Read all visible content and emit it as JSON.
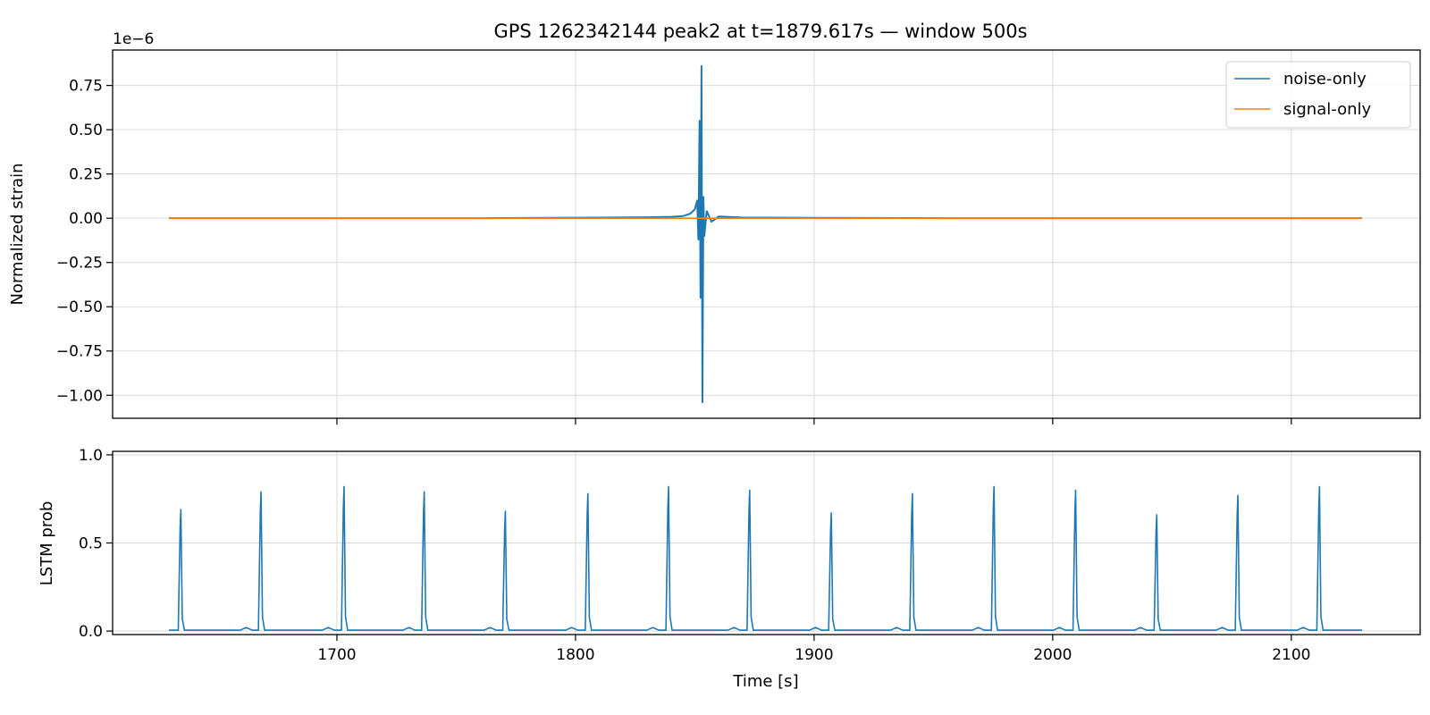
{
  "chart_data": {
    "title": "GPS 1262342144 peak2 at t=1879.617s — window 500s",
    "xlabel": "Time [s]",
    "panels": [
      {
        "type": "line",
        "ylabel": "Normalized strain",
        "offset_text": "1e−6",
        "scale": 1e-06,
        "xlim": [
          1606,
          2154
        ],
        "ylim": [
          -1.13,
          0.95
        ],
        "yticks": [
          0.75,
          0.5,
          0.25,
          0.0,
          -0.25,
          -0.5,
          -0.75,
          -1.0
        ],
        "ytick_labels": [
          "0.75",
          "0.50",
          "0.25",
          "0.00",
          "−0.25",
          "−0.50",
          "−0.75",
          "−1.00"
        ],
        "grid": true,
        "legend": "top-right",
        "series": [
          {
            "name": "noise-only",
            "color": "#1f77b4",
            "x": [
              1629.6,
              1700,
              1760,
              1800,
              1830,
              1840,
              1845,
              1848,
              1850,
              1851,
              1851.5,
              1852,
              1852.4,
              1852.8,
              1853.2,
              1853.6,
              1854,
              1855,
              1857,
              1860,
              1870,
              1900,
              1960,
              2040,
              2129.6
            ],
            "y": [
              0,
              0,
              0,
              0.003,
              0.005,
              0.008,
              0.012,
              0.025,
              0.05,
              0.1,
              -0.12,
              0.55,
              -0.45,
              0.86,
              -1.04,
              0.12,
              -0.1,
              0.04,
              -0.02,
              0.01,
              0.004,
              0.002,
              0,
              0,
              0
            ]
          },
          {
            "name": "signal-only",
            "color": "#ff7f0e",
            "x": [
              1629.6,
              2129.6
            ],
            "y": [
              0,
              0
            ]
          }
        ]
      },
      {
        "type": "line",
        "ylabel": "LSTM prob",
        "xlim": [
          1606,
          2154
        ],
        "ylim": [
          -0.02,
          1.02
        ],
        "yticks": [
          0.0,
          0.5,
          1.0
        ],
        "ytick_labels": [
          "0.0",
          "0.5",
          "1.0"
        ],
        "grid": true,
        "series": [
          {
            "color": "#1f77b4",
            "baseline": 0.005,
            "spikes": [
              {
                "x": 1634.6,
                "y": 0.69
              },
              {
                "x": 1668.2,
                "y": 0.79
              },
              {
                "x": 1703.0,
                "y": 0.82
              },
              {
                "x": 1736.6,
                "y": 0.79
              },
              {
                "x": 1770.6,
                "y": 0.68
              },
              {
                "x": 1805.2,
                "y": 0.78
              },
              {
                "x": 1839.0,
                "y": 0.82
              },
              {
                "x": 1873.0,
                "y": 0.8
              },
              {
                "x": 1907.2,
                "y": 0.67
              },
              {
                "x": 1941.2,
                "y": 0.78
              },
              {
                "x": 1975.4,
                "y": 0.82
              },
              {
                "x": 2009.6,
                "y": 0.8
              },
              {
                "x": 2043.6,
                "y": 0.66
              },
              {
                "x": 2077.6,
                "y": 0.77
              },
              {
                "x": 2111.8,
                "y": 0.82
              }
            ],
            "bumps": [
              {
                "x": 1662.0,
                "y": 0.02
              },
              {
                "x": 1696.4,
                "y": 0.02
              },
              {
                "x": 1730.2,
                "y": 0.02
              },
              {
                "x": 1764.2,
                "y": 0.02
              },
              {
                "x": 1798.4,
                "y": 0.02
              },
              {
                "x": 1832.4,
                "y": 0.02
              },
              {
                "x": 1866.4,
                "y": 0.02
              },
              {
                "x": 1900.6,
                "y": 0.02
              },
              {
                "x": 1934.6,
                "y": 0.02
              },
              {
                "x": 1968.8,
                "y": 0.02
              },
              {
                "x": 2002.8,
                "y": 0.02
              },
              {
                "x": 2036.8,
                "y": 0.02
              },
              {
                "x": 2071.0,
                "y": 0.02
              },
              {
                "x": 2105.0,
                "y": 0.02
              }
            ],
            "x_end": 2129.6
          }
        ]
      }
    ],
    "xticks": [
      1700,
      1800,
      1900,
      2000,
      2100
    ],
    "xtick_labels": [
      "1700",
      "1800",
      "1900",
      "2000",
      "2100"
    ]
  }
}
